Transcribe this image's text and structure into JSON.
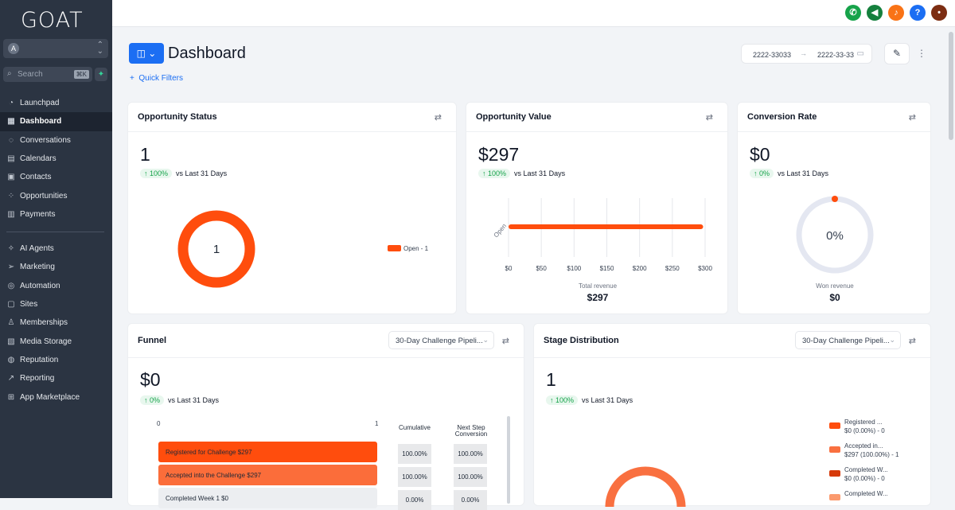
{
  "app": {
    "logo": "GOAT"
  },
  "sidebar": {
    "account_initial": "A",
    "search_placeholder": "Search",
    "search_shortcut": "⌘K",
    "items": [
      {
        "label": "Launchpad",
        "icon": "rocket-icon"
      },
      {
        "label": "Dashboard",
        "icon": "grid-icon"
      },
      {
        "label": "Conversations",
        "icon": "chat-icon"
      },
      {
        "label": "Calendars",
        "icon": "calendar-icon"
      },
      {
        "label": "Contacts",
        "icon": "contacts-icon"
      },
      {
        "label": "Opportunities",
        "icon": "network-icon"
      },
      {
        "label": "Payments",
        "icon": "payments-icon"
      }
    ],
    "items2": [
      {
        "label": "AI Agents",
        "icon": "sparkle-icon"
      },
      {
        "label": "Marketing",
        "icon": "send-icon"
      },
      {
        "label": "Automation",
        "icon": "automation-icon"
      },
      {
        "label": "Sites",
        "icon": "sites-icon"
      },
      {
        "label": "Memberships",
        "icon": "membership-icon"
      },
      {
        "label": "Media Storage",
        "icon": "image-icon"
      },
      {
        "label": "Reputation",
        "icon": "reputation-icon"
      },
      {
        "label": "Reporting",
        "icon": "reporting-icon"
      },
      {
        "label": "App Marketplace",
        "icon": "apps-icon"
      }
    ]
  },
  "header": {
    "title": "Dashboard",
    "quick_filters": "Quick Filters",
    "date_from": "2222-33033",
    "date_to": "2222-33-33"
  },
  "colors": {
    "accent": "#1b6ef3",
    "orange": "#ff4d0d",
    "green": "#16a34a"
  },
  "cards": {
    "opp_status": {
      "title": "Opportunity Status",
      "value": "1",
      "delta": "100%",
      "delta_text": "vs Last 31 Days",
      "center": "1",
      "legend": "Open - 1"
    },
    "opp_value": {
      "title": "Opportunity Value",
      "value": "$297",
      "delta": "100%",
      "delta_text": "vs Last 31 Days",
      "footer_label": "Total revenue",
      "footer_value": "$297"
    },
    "conversion": {
      "title": "Conversion Rate",
      "value": "$0",
      "delta": "0%",
      "delta_text": "vs Last 31 Days",
      "center": "0%",
      "footer_label": "Won revenue",
      "footer_value": "$0"
    },
    "funnel": {
      "title": "Funnel",
      "select": "30-Day Challenge Pipeli...",
      "value": "$0",
      "delta": "0%",
      "delta_text": "vs Last 31 Days",
      "axis_min": "0",
      "axis_max": "1",
      "col_cumulative": "Cumulative",
      "col_next": "Next Step Conversion",
      "rows": [
        {
          "label": "Registered for Challenge   $297",
          "cum": "100.00%",
          "next": "100.00%"
        },
        {
          "label": "Accepted into the Challenge   $297",
          "cum": "100.00%",
          "next": "100.00%"
        },
        {
          "label": "Completed Week 1   $0",
          "cum": "0.00%",
          "next": "0.00%"
        }
      ]
    },
    "stage": {
      "title": "Stage Distribution",
      "select": "30-Day Challenge Pipeli...",
      "value": "1",
      "delta": "100%",
      "delta_text": "vs Last 31 Days",
      "legend": [
        {
          "l1": "Registered ...",
          "l2": "$0 (0.00%) - 0",
          "color": "#ff4d0d"
        },
        {
          "l1": "Accepted in...",
          "l2": "$297 (100.00%) - 1",
          "color": "#f97040"
        },
        {
          "l1": "Completed W...",
          "l2": "$0 (0.00%) - 0",
          "color": "#d63a0a"
        },
        {
          "l1": "Completed W...",
          "l2": "",
          "color": "#fb9a6e"
        }
      ]
    }
  },
  "chart_data": [
    {
      "type": "pie",
      "title": "Opportunity Status",
      "categories": [
        "Open"
      ],
      "values": [
        1
      ]
    },
    {
      "type": "bar",
      "title": "Opportunity Value",
      "categories": [
        "Open"
      ],
      "values": [
        297
      ],
      "xlim": [
        0,
        300
      ],
      "xticks": [
        "$0",
        "$50",
        "$100",
        "$150",
        "$200",
        "$250",
        "$300"
      ],
      "xlabel": "Total revenue"
    },
    {
      "type": "pie",
      "title": "Conversion Rate",
      "categories": [
        "Won"
      ],
      "values": [
        0
      ]
    }
  ]
}
